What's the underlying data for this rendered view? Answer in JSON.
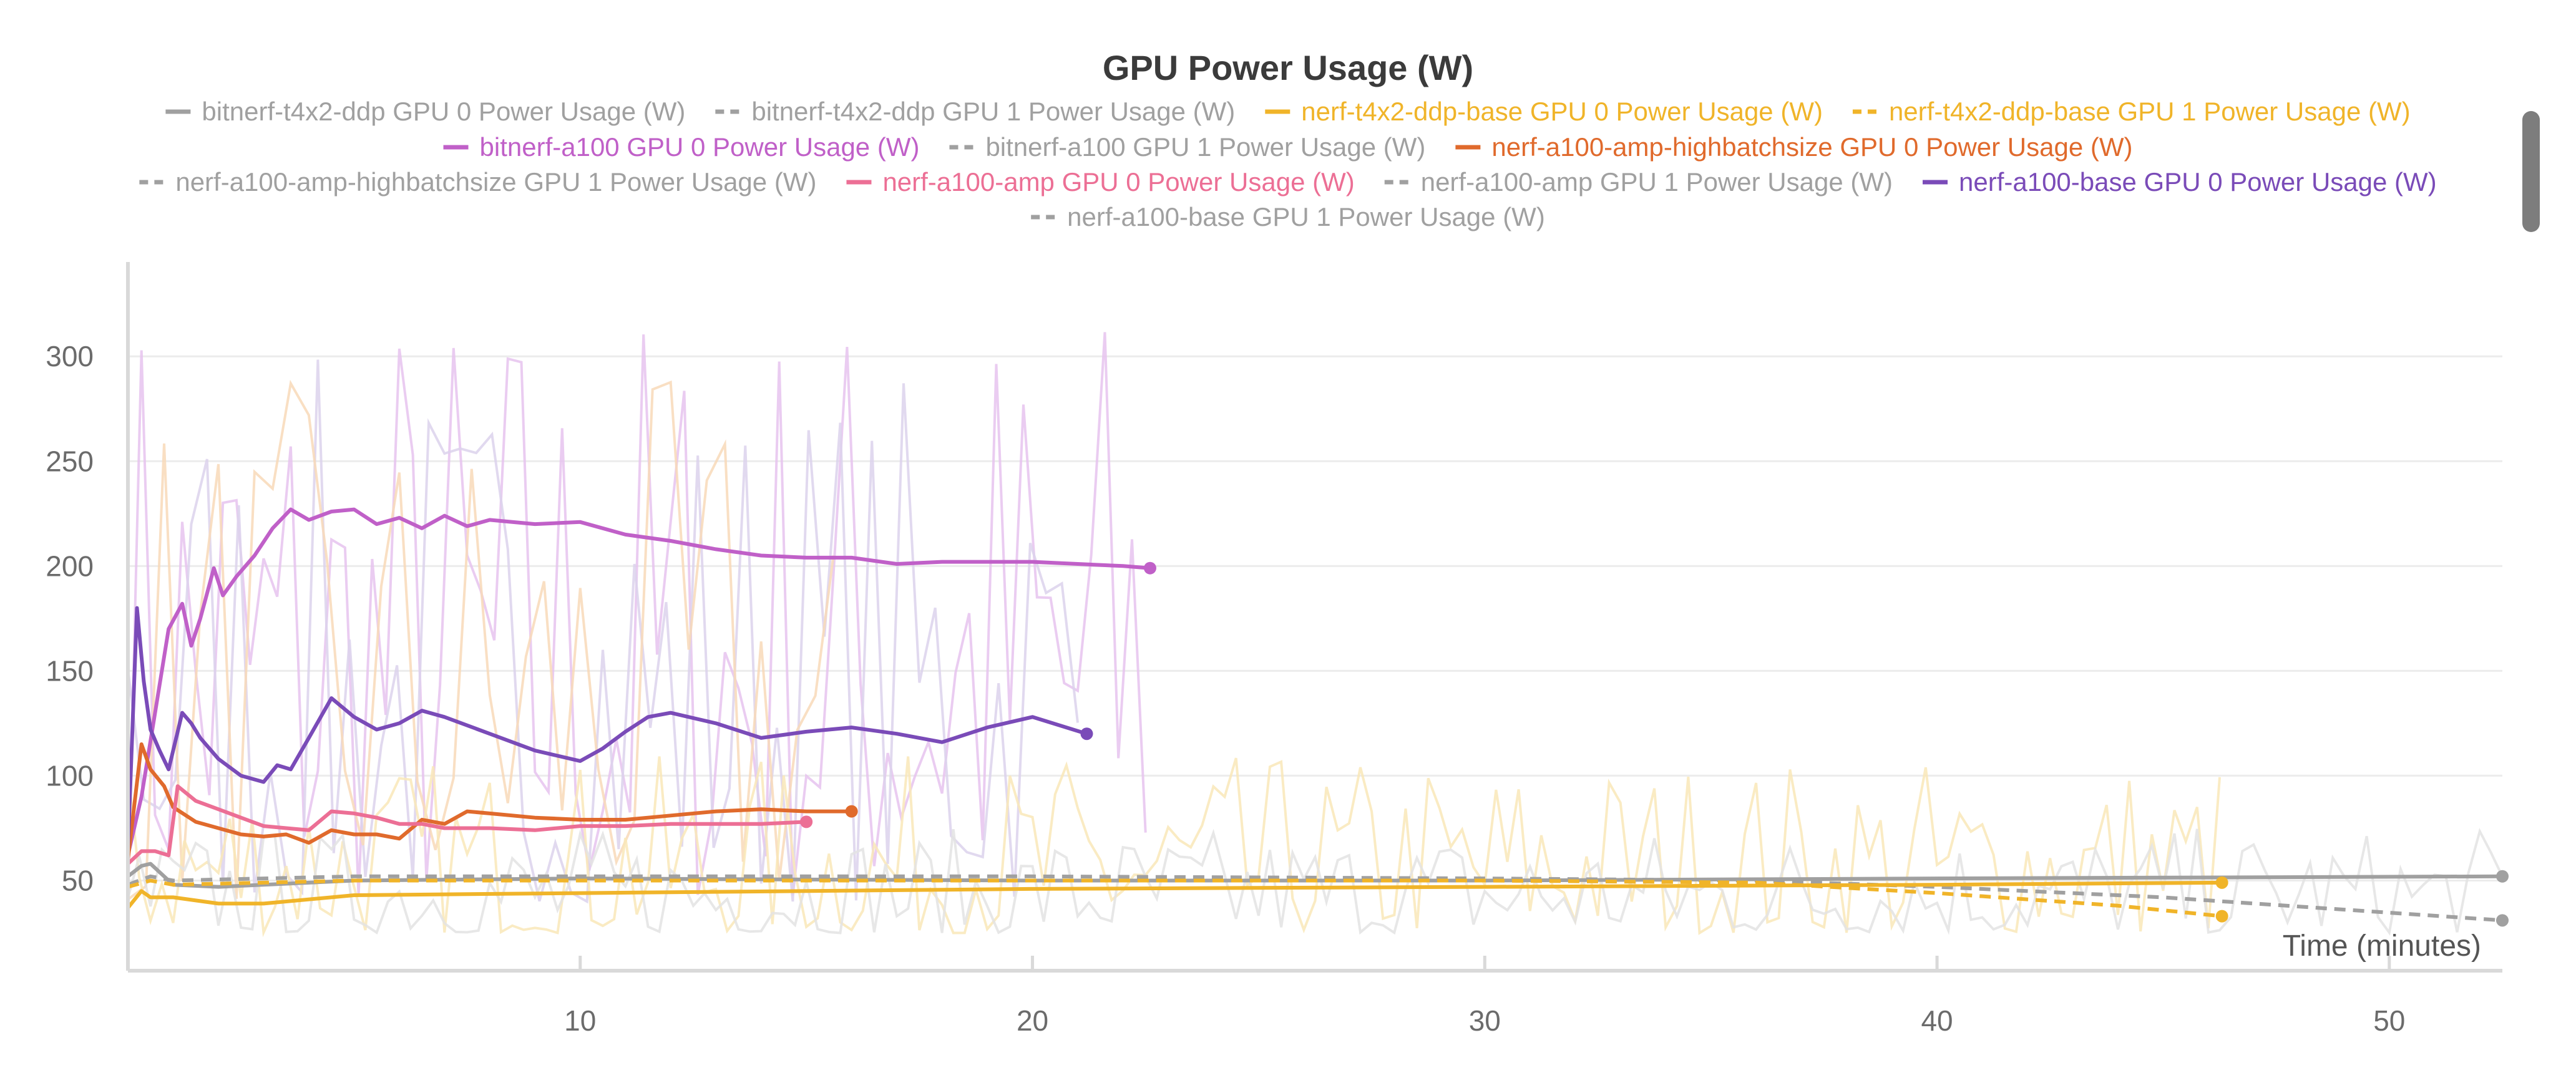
{
  "chart_data": {
    "type": "line",
    "title": "GPU Power Usage (W)",
    "xlabel": "Time (minutes)",
    "ylabel": "",
    "xlim": [
      0,
      52.5
    ],
    "ylim": [
      7,
      345
    ],
    "xticks": [
      10,
      20,
      30,
      40,
      50
    ],
    "yticks": [
      50,
      100,
      150,
      200,
      250,
      300
    ],
    "grid": true,
    "legend_position": "top",
    "series": [
      {
        "name": "bitnerf-t4x2-ddp GPU 0 Power Usage (W)",
        "color": "#a0a0a0",
        "dash": false,
        "end_marker": true,
        "x": [
          0,
          0.3,
          0.5,
          1,
          2,
          5,
          10,
          20,
          30,
          40,
          52.5
        ],
        "y": [
          52,
          57,
          58,
          48,
          47,
          50,
          51,
          50,
          50,
          51,
          52
        ]
      },
      {
        "name": "bitnerf-t4x2-ddp GPU 1 Power Usage (W)",
        "color": "#a0a0a0",
        "dash": true,
        "end_marker": true,
        "x": [
          0,
          0.5,
          1,
          5,
          10,
          20,
          30,
          36,
          40,
          45,
          52.5
        ],
        "y": [
          48,
          52,
          50,
          52,
          52,
          52,
          51,
          50,
          47,
          42,
          31
        ]
      },
      {
        "name": "nerf-t4x2-ddp-base GPU 0 Power Usage (W)",
        "color": "#f0b429",
        "dash": false,
        "end_marker": true,
        "x": [
          0,
          0.3,
          0.5,
          1,
          2,
          3,
          5,
          10,
          20,
          30,
          40,
          46.3
        ],
        "y": [
          37,
          45,
          42,
          42,
          39,
          39,
          43,
          44,
          46,
          47,
          48,
          49
        ]
      },
      {
        "name": "nerf-t4x2-ddp-base GPU 1 Power Usage (W)",
        "color": "#f0b429",
        "dash": true,
        "end_marker": true,
        "x": [
          0,
          0.5,
          1,
          5,
          10,
          20,
          30,
          36,
          40,
          44,
          46.3
        ],
        "y": [
          47,
          50,
          48,
          50,
          50,
          50,
          50,
          49,
          44,
          38,
          33
        ]
      },
      {
        "name": "bitnerf-a100 GPU 0 Power Usage (W)",
        "color": "#c060c8",
        "dash": false,
        "end_marker": true,
        "x": [
          0,
          0.3,
          0.6,
          0.9,
          1.2,
          1.4,
          1.6,
          1.9,
          2.1,
          2.4,
          2.8,
          3.2,
          3.6,
          4,
          4.5,
          5,
          5.5,
          6,
          6.5,
          7,
          7.5,
          8,
          9,
          10,
          11,
          12,
          13,
          14,
          15,
          16,
          17,
          18,
          19,
          20,
          21,
          22,
          22.6
        ],
        "y": [
          62,
          90,
          130,
          170,
          182,
          162,
          175,
          199,
          186,
          195,
          205,
          218,
          227,
          222,
          226,
          227,
          220,
          223,
          218,
          224,
          219,
          222,
          220,
          221,
          215,
          212,
          208,
          205,
          204,
          204,
          201,
          202,
          202,
          202,
          201,
          200,
          199
        ]
      },
      {
        "name": "bitnerf-a100 GPU 1 Power Usage (W)",
        "color": "#a0a0a0",
        "dash": true,
        "end_marker": false,
        "x": [],
        "y": []
      },
      {
        "name": "nerf-a100-amp-highbatchsize GPU 0 Power Usage (W)",
        "color": "#e06a2c",
        "dash": false,
        "end_marker": true,
        "x": [
          0,
          0.3,
          0.5,
          0.8,
          1,
          1.5,
          2,
          2.5,
          3,
          3.5,
          4,
          4.5,
          5,
          5.5,
          6,
          6.5,
          7,
          7.5,
          8,
          9,
          10,
          11,
          12,
          13,
          14,
          15,
          16
        ],
        "y": [
          60,
          115,
          103,
          95,
          85,
          78,
          75,
          72,
          71,
          72,
          68,
          74,
          72,
          72,
          70,
          79,
          77,
          83,
          82,
          80,
          79,
          79,
          81,
          83,
          84,
          83,
          83
        ]
      },
      {
        "name": "nerf-a100-amp-highbatchsize GPU 1 Power Usage (W)",
        "color": "#a0a0a0",
        "dash": true,
        "end_marker": false,
        "x": [],
        "y": []
      },
      {
        "name": "nerf-a100-amp GPU 0 Power Usage (W)",
        "color": "#ec6f95",
        "dash": false,
        "end_marker": true,
        "x": [
          0,
          0.3,
          0.6,
          0.9,
          1.1,
          1.5,
          2,
          2.5,
          3,
          3.5,
          4,
          4.5,
          5,
          5.5,
          6,
          6.5,
          7,
          8,
          9,
          10,
          11,
          12,
          13,
          14,
          15
        ],
        "y": [
          58,
          64,
          64,
          62,
          95,
          88,
          84,
          80,
          76,
          75,
          74,
          83,
          82,
          80,
          77,
          77,
          75,
          75,
          74,
          76,
          76,
          77,
          77,
          77,
          78
        ]
      },
      {
        "name": "nerf-a100-amp GPU 1 Power Usage (W)",
        "color": "#a0a0a0",
        "dash": true,
        "end_marker": false,
        "x": [],
        "y": []
      },
      {
        "name": "nerf-a100-base GPU 0 Power Usage (W)",
        "color": "#7a4bb8",
        "dash": false,
        "end_marker": true,
        "x": [
          0,
          0.2,
          0.35,
          0.5,
          0.7,
          0.9,
          1.2,
          1.4,
          1.6,
          2,
          2.5,
          3,
          3.3,
          3.6,
          4,
          4.5,
          5,
          5.5,
          6,
          6.5,
          7,
          8,
          9,
          10,
          10.5,
          11,
          11.5,
          12,
          13,
          14,
          15,
          16,
          17,
          18,
          19,
          20,
          21.2
        ],
        "y": [
          65,
          180,
          145,
          122,
          112,
          103,
          130,
          125,
          118,
          108,
          100,
          97,
          105,
          103,
          118,
          137,
          128,
          122,
          125,
          131,
          128,
          120,
          112,
          107,
          113,
          121,
          128,
          130,
          125,
          118,
          121,
          123,
          120,
          116,
          123,
          128,
          120
        ]
      },
      {
        "name": "nerf-a100-base GPU 1 Power Usage (W)",
        "color": "#a0a0a0",
        "dash": true,
        "end_marker": false,
        "x": [],
        "y": []
      }
    ],
    "noise_bands": [
      {
        "color": "#e6c3ee",
        "x_start": 0,
        "x_end": 22.6,
        "low": 40,
        "high": 340,
        "step": 0.3
      },
      {
        "color": "#dcd2ec",
        "x_start": 0,
        "x_end": 21.2,
        "low": 40,
        "high": 300,
        "step": 0.35
      },
      {
        "color": "#f8d9b8",
        "x_start": 0,
        "x_end": 16,
        "low": 40,
        "high": 290,
        "step": 0.4
      },
      {
        "color": "#f9e7b8",
        "x_start": 0,
        "x_end": 46.3,
        "low": 25,
        "high": 110,
        "step": 0.25
      },
      {
        "color": "#e3e3e3",
        "x_start": 0,
        "x_end": 52.5,
        "low": 25,
        "high": 75,
        "step": 0.25
      }
    ]
  }
}
